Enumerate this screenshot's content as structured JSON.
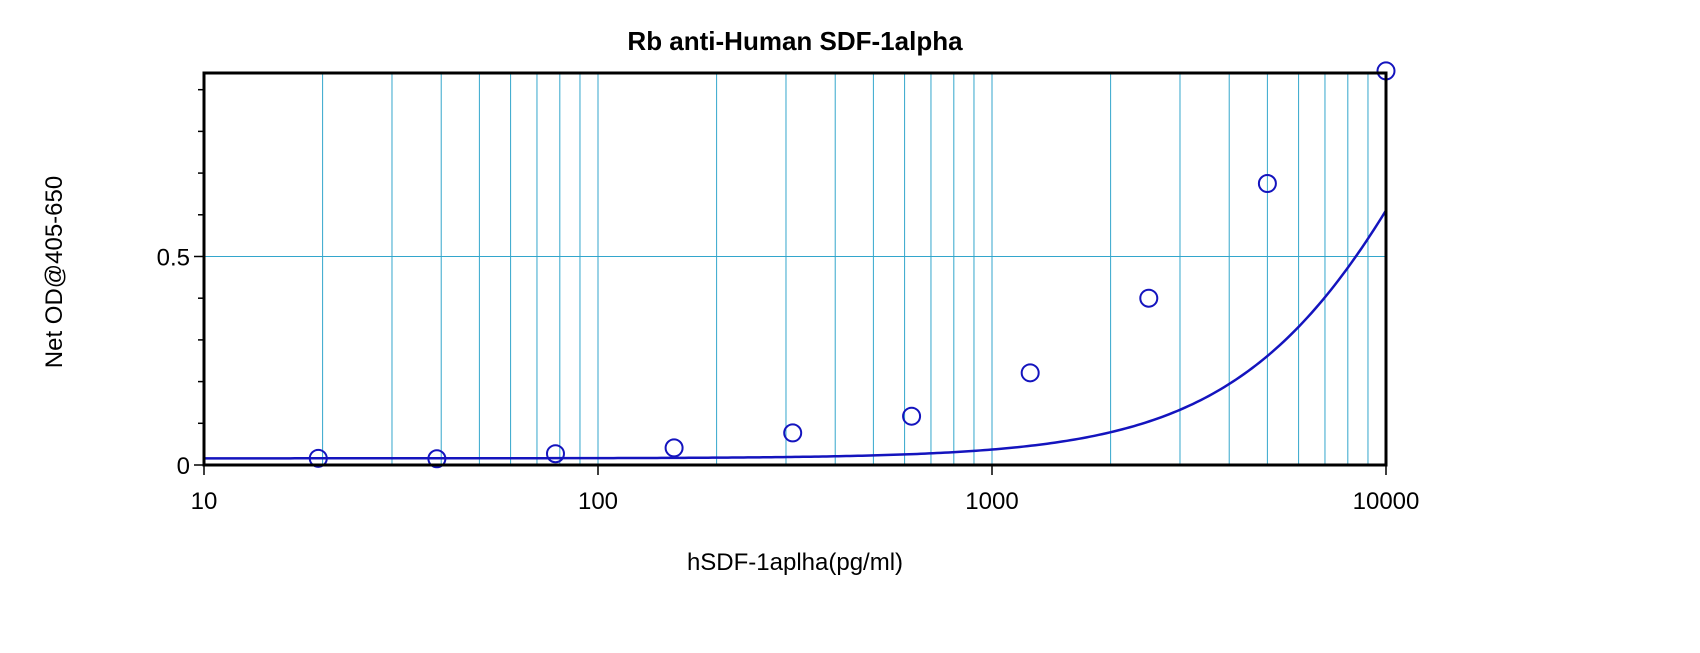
{
  "chart_data": {
    "type": "scatter",
    "title": "Rb anti-Human SDF-1alpha",
    "xlabel": "hSDF-1aplha(pg/ml)",
    "ylabel": "Net OD@405-650",
    "x_scale": "log",
    "xlim": [
      10,
      10000
    ],
    "ylim": [
      0,
      0.94
    ],
    "x_ticks": [
      {
        "value": 10,
        "label": "10"
      },
      {
        "value": 100,
        "label": "100"
      },
      {
        "value": 1000,
        "label": "1000"
      },
      {
        "value": 10000,
        "label": "10000"
      }
    ],
    "y_ticks": [
      {
        "value": 0,
        "label": "0"
      },
      {
        "value": 0.5,
        "label": "0.5"
      }
    ],
    "grid": true,
    "legend": "none",
    "series": [
      {
        "points": [
          {
            "x": 19.5,
            "y": 0.016
          },
          {
            "x": 39,
            "y": 0.015
          },
          {
            "x": 78,
            "y": 0.027
          },
          {
            "x": 156,
            "y": 0.041
          },
          {
            "x": 312,
            "y": 0.077
          },
          {
            "x": 625,
            "y": 0.117
          },
          {
            "x": 1250,
            "y": 0.221
          },
          {
            "x": 2500,
            "y": 0.4
          },
          {
            "x": 5000,
            "y": 0.675
          },
          {
            "x": 10000,
            "y": 0.945
          }
        ]
      }
    ],
    "fit_curve": {
      "model": "4PL",
      "A": 0.016,
      "B": 1.6,
      "C": 17000,
      "D": 2.0
    },
    "colors": {
      "grid": "#33A6CC",
      "series": "#1414BE",
      "axis": "#000000"
    }
  }
}
